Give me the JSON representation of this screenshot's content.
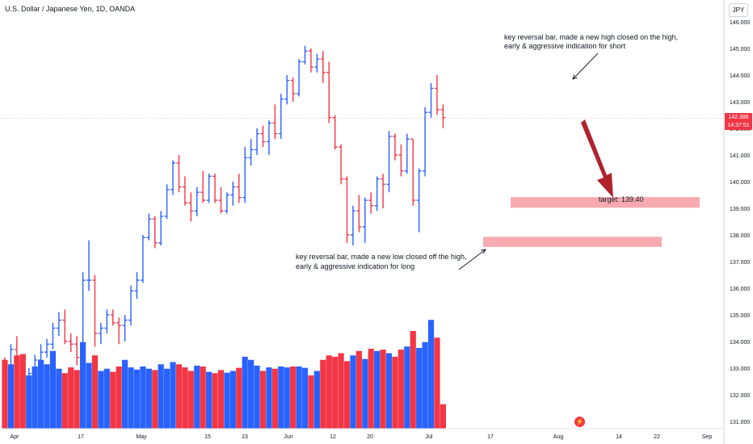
{
  "header": {
    "title": "U.S. Dollar / Japanese Yen, 1D, OANDA",
    "currency": "JPY"
  },
  "price_tag": {
    "price": "142.386",
    "countdown": "14:37:51"
  },
  "annotations": {
    "short_line1": "key reversal bar, made a new high closed on the high,",
    "short_line2": "early & aggressive indication for short",
    "long_line1": "key reversal bar, made a new low closed off the high,",
    "long_line2": "early & aggressive indication for long",
    "target": "target: 139.40"
  },
  "colors": {
    "up": "#2962ff",
    "down": "#f23645",
    "zone": "#f7a1a8",
    "arrow": "#b0222e"
  },
  "chart_data": {
    "type": "bar",
    "ohlc": [
      [
        132.9,
        133.4,
        132.2,
        132.6
      ],
      [
        132.6,
        133.9,
        132.3,
        133.7
      ],
      [
        133.7,
        134.2,
        132.9,
        133.2
      ],
      [
        133.2,
        133.4,
        131.8,
        132.0
      ],
      [
        132.0,
        133.0,
        131.6,
        132.8
      ],
      [
        132.8,
        133.5,
        132.6,
        133.3
      ],
      [
        133.3,
        133.9,
        133.1,
        133.6
      ],
      [
        133.6,
        134.1,
        133.4,
        133.9
      ],
      [
        133.9,
        134.7,
        133.7,
        134.5
      ],
      [
        134.5,
        135.1,
        134.2,
        134.8
      ],
      [
        134.8,
        135.2,
        133.9,
        134.0
      ],
      [
        134.0,
        134.3,
        133.6,
        133.9
      ],
      [
        133.9,
        134.2,
        133.1,
        133.4
      ],
      [
        133.4,
        136.6,
        133.3,
        136.3
      ],
      [
        136.3,
        137.8,
        135.9,
        136.3
      ],
      [
        136.3,
        136.5,
        133.8,
        134.3
      ],
      [
        134.3,
        134.7,
        133.9,
        134.5
      ],
      [
        134.5,
        135.2,
        134.3,
        135.0
      ],
      [
        135.0,
        135.2,
        134.6,
        134.7
      ],
      [
        134.7,
        134.9,
        133.9,
        134.6
      ],
      [
        134.6,
        135.0,
        134.0,
        134.8
      ],
      [
        134.8,
        136.1,
        134.6,
        135.9
      ],
      [
        135.9,
        136.6,
        135.6,
        136.3
      ],
      [
        136.3,
        138.0,
        136.2,
        137.9
      ],
      [
        137.9,
        138.8,
        137.8,
        138.6
      ],
      [
        138.6,
        138.7,
        137.5,
        137.7
      ],
      [
        137.7,
        138.9,
        137.6,
        138.7
      ],
      [
        138.7,
        139.9,
        138.6,
        139.7
      ],
      [
        139.7,
        140.8,
        139.5,
        140.7
      ],
      [
        140.7,
        141.0,
        139.6,
        139.8
      ],
      [
        139.8,
        140.2,
        139.1,
        139.2
      ],
      [
        139.2,
        139.6,
        138.5,
        138.9
      ],
      [
        138.9,
        139.8,
        138.7,
        139.6
      ],
      [
        139.6,
        140.4,
        139.2,
        139.3
      ],
      [
        139.3,
        140.3,
        139.2,
        140.2
      ],
      [
        140.2,
        140.3,
        139.2,
        139.3
      ],
      [
        139.3,
        139.8,
        138.8,
        138.9
      ],
      [
        138.9,
        139.6,
        138.8,
        139.5
      ],
      [
        139.5,
        140.0,
        139.1,
        139.8
      ],
      [
        139.8,
        140.3,
        139.2,
        139.4
      ],
      [
        139.4,
        141.3,
        139.2,
        140.9
      ],
      [
        140.9,
        141.6,
        140.6,
        141.2
      ],
      [
        141.2,
        142.0,
        141.0,
        141.8
      ],
      [
        141.8,
        142.1,
        141.3,
        141.5
      ],
      [
        141.5,
        142.3,
        141.0,
        142.2
      ],
      [
        142.2,
        142.9,
        141.6,
        141.8
      ],
      [
        141.8,
        143.3,
        141.6,
        143.1
      ],
      [
        143.1,
        144.0,
        142.9,
        143.8
      ],
      [
        143.8,
        143.9,
        143.0,
        143.3
      ],
      [
        143.3,
        144.6,
        143.2,
        144.5
      ],
      [
        144.5,
        145.1,
        144.4,
        144.9
      ],
      [
        144.9,
        145.0,
        144.1,
        144.3
      ],
      [
        144.3,
        144.8,
        144.1,
        144.6
      ],
      [
        144.6,
        144.9,
        143.7,
        144.1
      ],
      [
        144.1,
        144.5,
        142.2,
        142.4
      ],
      [
        142.4,
        142.5,
        141.2,
        141.3
      ],
      [
        141.3,
        141.4,
        139.9,
        140.1
      ],
      [
        140.1,
        140.2,
        137.7,
        138.0
      ],
      [
        138.0,
        139.1,
        137.6,
        138.9
      ],
      [
        138.9,
        139.5,
        138.1,
        138.3
      ],
      [
        138.3,
        139.4,
        137.7,
        139.3
      ],
      [
        139.3,
        139.6,
        138.8,
        139.1
      ],
      [
        139.1,
        140.2,
        138.9,
        140.1
      ],
      [
        140.1,
        140.3,
        139.0,
        139.9
      ],
      [
        139.9,
        141.9,
        139.6,
        141.7
      ],
      [
        141.7,
        141.8,
        140.8,
        141.0
      ],
      [
        141.0,
        141.4,
        140.2,
        140.4
      ],
      [
        140.4,
        141.8,
        140.3,
        141.6
      ],
      [
        141.6,
        141.6,
        139.1,
        139.3
      ],
      [
        139.3,
        140.5,
        138.1,
        140.4
      ],
      [
        140.4,
        142.8,
        140.2,
        142.6
      ],
      [
        142.6,
        143.7,
        142.4,
        143.5
      ],
      [
        143.5,
        144.0,
        142.5,
        142.7
      ],
      [
        142.7,
        142.9,
        142.0,
        142.4
      ]
    ],
    "volume": [
      1.55,
      1.45,
      1.65,
      1.68,
      1.2,
      1.4,
      1.55,
      1.45,
      1.75,
      1.35,
      1.25,
      1.38,
      1.32,
      1.95,
      1.48,
      1.65,
      1.3,
      1.35,
      1.28,
      1.4,
      1.55,
      1.38,
      1.33,
      1.4,
      1.35,
      1.32,
      1.45,
      1.35,
      1.5,
      1.45,
      1.38,
      1.3,
      1.42,
      1.4,
      1.28,
      1.25,
      1.32,
      1.26,
      1.3,
      1.37,
      1.62,
      1.55,
      1.42,
      1.3,
      1.38,
      1.35,
      1.4,
      1.38,
      1.4,
      1.4,
      1.37,
      1.2,
      1.3,
      1.55,
      1.65,
      1.62,
      1.7,
      1.52,
      1.65,
      1.75,
      1.57,
      1.8,
      1.75,
      1.78,
      1.7,
      1.62,
      1.78,
      1.85,
      2.2,
      1.82,
      1.95,
      2.45,
      2.05,
      0.55
    ],
    "x_tick_labels": [
      "Apr",
      "17",
      "May",
      "15",
      "23",
      "Jun",
      "12",
      "20",
      "Jul",
      "17",
      "Aug",
      "14",
      "22",
      "Sep"
    ],
    "y_tick_labels": [
      "146.000",
      "145.000",
      "144.000",
      "143.000",
      "142.000",
      "141.000",
      "140.000",
      "139.000",
      "138.000",
      "137.000",
      "136.000",
      "135.000",
      "134.000",
      "133.000",
      "132.000",
      "131.000"
    ],
    "y_range": [
      130.8,
      146.2
    ],
    "last_price": 142.386,
    "target": 139.4,
    "zones": [
      {
        "low": 139.02,
        "high": 139.42
      },
      {
        "low": 137.55,
        "high": 137.93
      }
    ]
  }
}
